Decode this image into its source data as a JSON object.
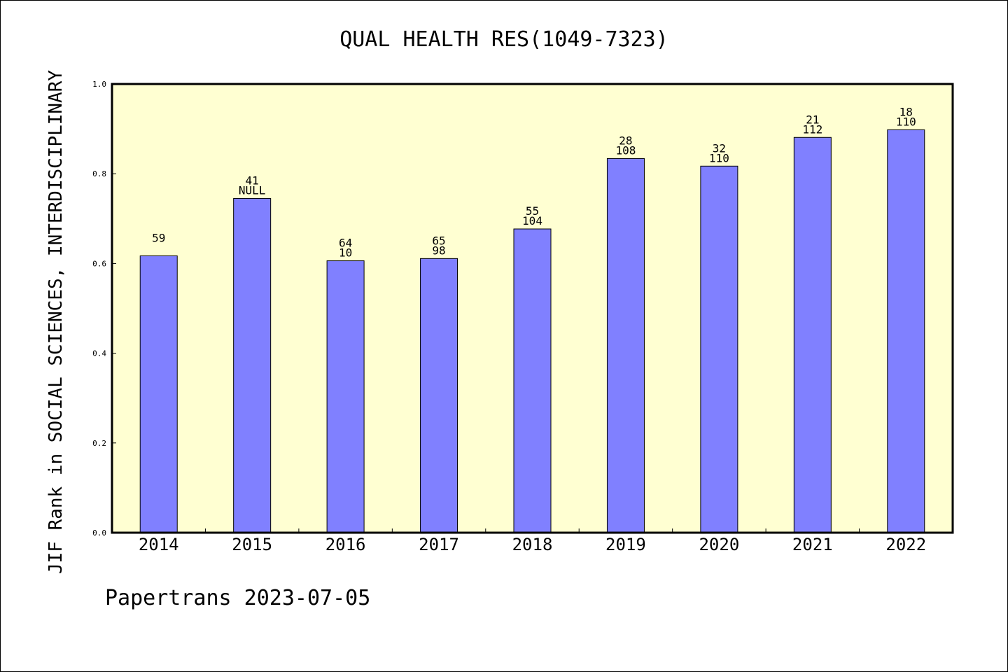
{
  "chart_data": {
    "type": "bar",
    "title": "QUAL HEALTH RES(1049-7323)",
    "ylabel": "JIF Rank in SOCIAL SCIENCES, INTERDISCIPLINARY",
    "xlabel": "",
    "footer": "Papertrans 2023-07-05",
    "ylim": [
      0,
      1.0
    ],
    "y_ticks": [
      "0.0",
      "0.2",
      "0.4",
      "0.6",
      "0.8",
      "1.0"
    ],
    "grid": false,
    "categories": [
      "2014",
      "2015",
      "2016",
      "2017",
      "2018",
      "2019",
      "2020",
      "2021",
      "2022"
    ],
    "values": [
      0.617,
      0.745,
      0.606,
      0.611,
      0.677,
      0.834,
      0.817,
      0.881,
      0.898
    ],
    "rank_labels": [
      "59",
      "41",
      "64",
      "65",
      "55",
      "28",
      "32",
      "21",
      "18"
    ],
    "total_labels": [
      "",
      "NULL",
      "10",
      "98",
      "104",
      "108",
      "110",
      "112",
      "110"
    ]
  },
  "colors": {
    "plot_background": "#ffffd2",
    "bar_fill": "#8080ff",
    "frame": "#000000",
    "text": "#000000"
  }
}
